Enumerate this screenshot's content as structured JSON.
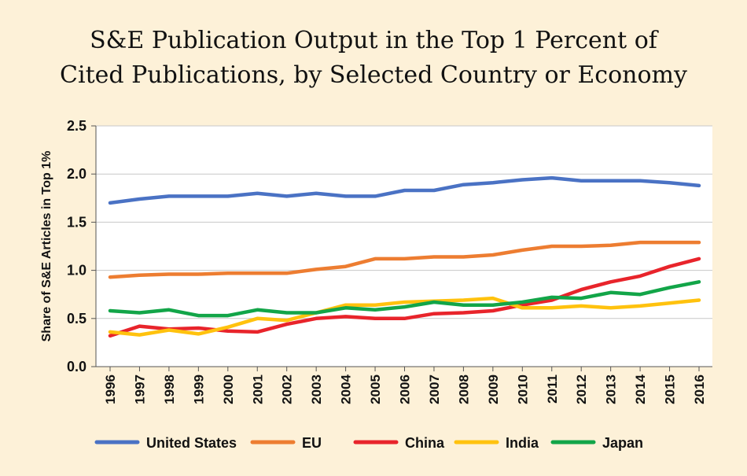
{
  "title_lines": [
    "S&E Publication Output in the Top 1 Percent of",
    "Cited Publications, by Selected Country or Economy"
  ],
  "chart_data": {
    "type": "line",
    "title": "S&E Publication Output in the Top 1 Percent of Cited Publications, by Selected Country or Economy",
    "xlabel": "",
    "ylabel": "Share of S&E Articles in Top 1%",
    "ylim": [
      0,
      2.5
    ],
    "yticks": [
      0.0,
      0.5,
      1.0,
      1.5,
      2.0,
      2.5
    ],
    "ytick_labels": [
      "0.0",
      "0.5",
      "1.0",
      "1.5",
      "2.0",
      "2.5"
    ],
    "grid": "horizontal",
    "legend_position": "bottom",
    "x": [
      "1996",
      "1997",
      "1998",
      "1999",
      "2000",
      "2001",
      "2002",
      "2003",
      "2004",
      "2005",
      "2006",
      "2007",
      "2008",
      "2009",
      "2010",
      "2011",
      "2012",
      "2013",
      "2014",
      "2015",
      "2016"
    ],
    "series": [
      {
        "name": "United States",
        "color": "#4a72c4",
        "values": [
          1.7,
          1.74,
          1.77,
          1.77,
          1.77,
          1.8,
          1.77,
          1.8,
          1.77,
          1.77,
          1.83,
          1.83,
          1.89,
          1.91,
          1.94,
          1.96,
          1.93,
          1.93,
          1.93,
          1.91,
          1.88
        ]
      },
      {
        "name": "EU",
        "color": "#ed7d31",
        "values": [
          0.93,
          0.95,
          0.96,
          0.96,
          0.97,
          0.97,
          0.97,
          1.01,
          1.04,
          1.12,
          1.12,
          1.14,
          1.14,
          1.16,
          1.21,
          1.25,
          1.25,
          1.26,
          1.29,
          1.29,
          1.29
        ]
      },
      {
        "name": "China",
        "color": "#e8242b",
        "values": [
          0.32,
          0.42,
          0.39,
          0.4,
          0.37,
          0.36,
          0.44,
          0.5,
          0.52,
          0.5,
          0.5,
          0.55,
          0.56,
          0.58,
          0.64,
          0.69,
          0.8,
          0.88,
          0.94,
          1.04,
          1.12
        ]
      },
      {
        "name": "India",
        "color": "#ffc20e",
        "values": [
          0.36,
          0.33,
          0.38,
          0.34,
          0.41,
          0.5,
          0.48,
          0.56,
          0.64,
          0.64,
          0.67,
          0.68,
          0.69,
          0.71,
          0.61,
          0.61,
          0.63,
          0.61,
          0.63,
          0.66,
          0.69
        ]
      },
      {
        "name": "Japan",
        "color": "#12a548",
        "values": [
          0.58,
          0.56,
          0.59,
          0.53,
          0.53,
          0.59,
          0.56,
          0.56,
          0.61,
          0.59,
          0.62,
          0.67,
          0.64,
          0.64,
          0.67,
          0.72,
          0.71,
          0.77,
          0.75,
          0.82,
          0.88
        ]
      }
    ]
  }
}
